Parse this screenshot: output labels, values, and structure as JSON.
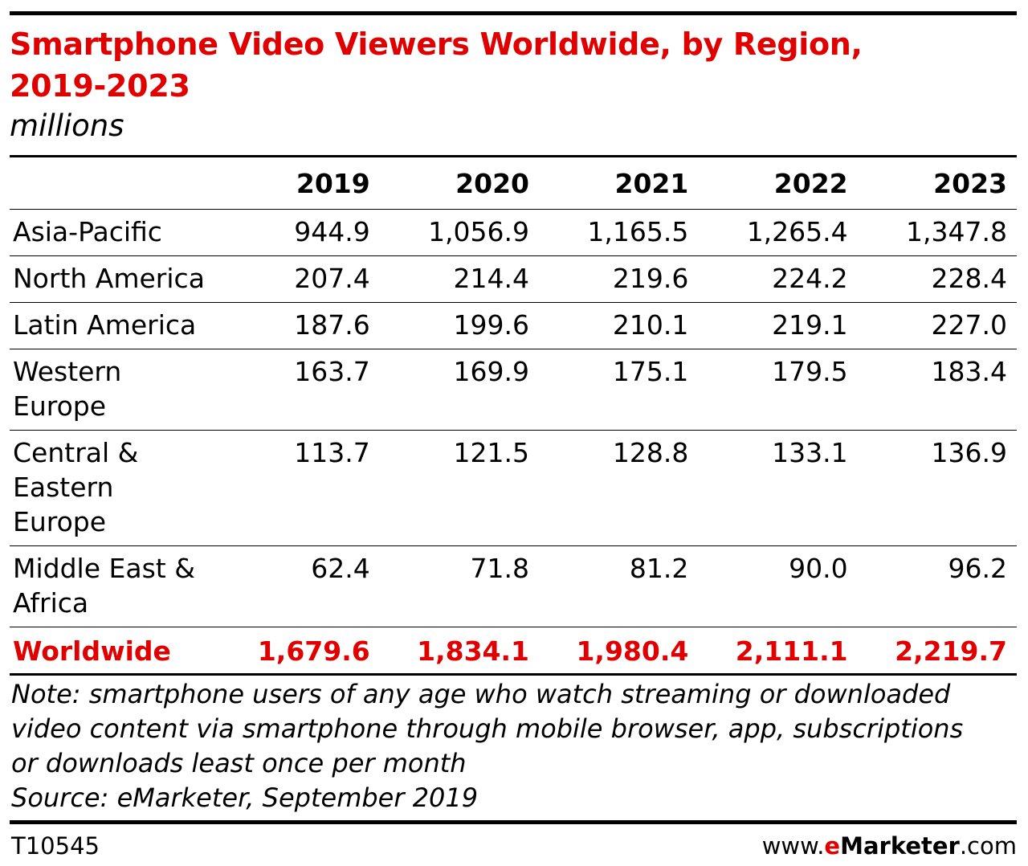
{
  "chart_data": {
    "type": "table",
    "title_line1": "Smartphone Video Viewers Worldwide, by Region,",
    "title_line2": "2019-2023",
    "subtitle": "millions",
    "columns": [
      "2019",
      "2020",
      "2021",
      "2022",
      "2023"
    ],
    "rows": [
      {
        "label_lines": [
          "Asia-Pacific"
        ],
        "values": [
          "944.9",
          "1,056.9",
          "1,165.5",
          "1,265.4",
          "1,347.8"
        ]
      },
      {
        "label_lines": [
          "North America"
        ],
        "values": [
          "207.4",
          "214.4",
          "219.6",
          "224.2",
          "228.4"
        ]
      },
      {
        "label_lines": [
          "Latin America"
        ],
        "values": [
          "187.6",
          "199.6",
          "210.1",
          "219.1",
          "227.0"
        ]
      },
      {
        "label_lines": [
          "Western",
          "Europe"
        ],
        "values": [
          "163.7",
          "169.9",
          "175.1",
          "179.5",
          "183.4"
        ]
      },
      {
        "label_lines": [
          "Central &",
          "Eastern Europe"
        ],
        "values": [
          "113.7",
          "121.5",
          "128.8",
          "133.1",
          "136.9"
        ]
      },
      {
        "label_lines": [
          "Middle East &",
          "Africa"
        ],
        "values": [
          "62.4",
          "71.8",
          "81.2",
          "90.0",
          "96.2"
        ]
      }
    ],
    "total": {
      "label": "Worldwide",
      "values": [
        "1,679.6",
        "1,834.1",
        "1,980.4",
        "2,111.1",
        "2,219.7"
      ]
    },
    "note_lines": [
      "Note: smartphone users of any age who watch streaming or downloaded",
      "video content via smartphone through mobile browser, app, subscriptions",
      "or downloads least once per month"
    ],
    "source": "Source: eMarketer, September 2019"
  },
  "footer": {
    "chart_id": "T10545",
    "brand_prefix": "www.",
    "brand_e": "e",
    "brand_name": "Marketer",
    "brand_suffix": ".com"
  },
  "colors": {
    "accent": "#e00000",
    "text": "#000000"
  }
}
